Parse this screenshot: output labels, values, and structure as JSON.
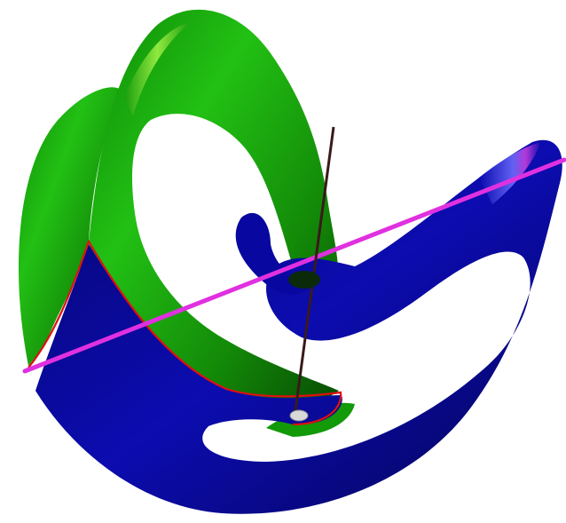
{
  "scene": {
    "background": "#ffffff",
    "colors": {
      "green_surface": "#1fae12",
      "green_dark": "#0a5a05",
      "green_highlight": "#d8ff60",
      "blue_surface": "#0a0aa0",
      "blue_dark": "#04045a",
      "blue_highlight": "#6a6aff",
      "magenta_axis": "#e030e0",
      "vertical_axis": "#3a1a1a",
      "red_edge": "#e01010",
      "center_dot": "#d8d8d8"
    }
  }
}
